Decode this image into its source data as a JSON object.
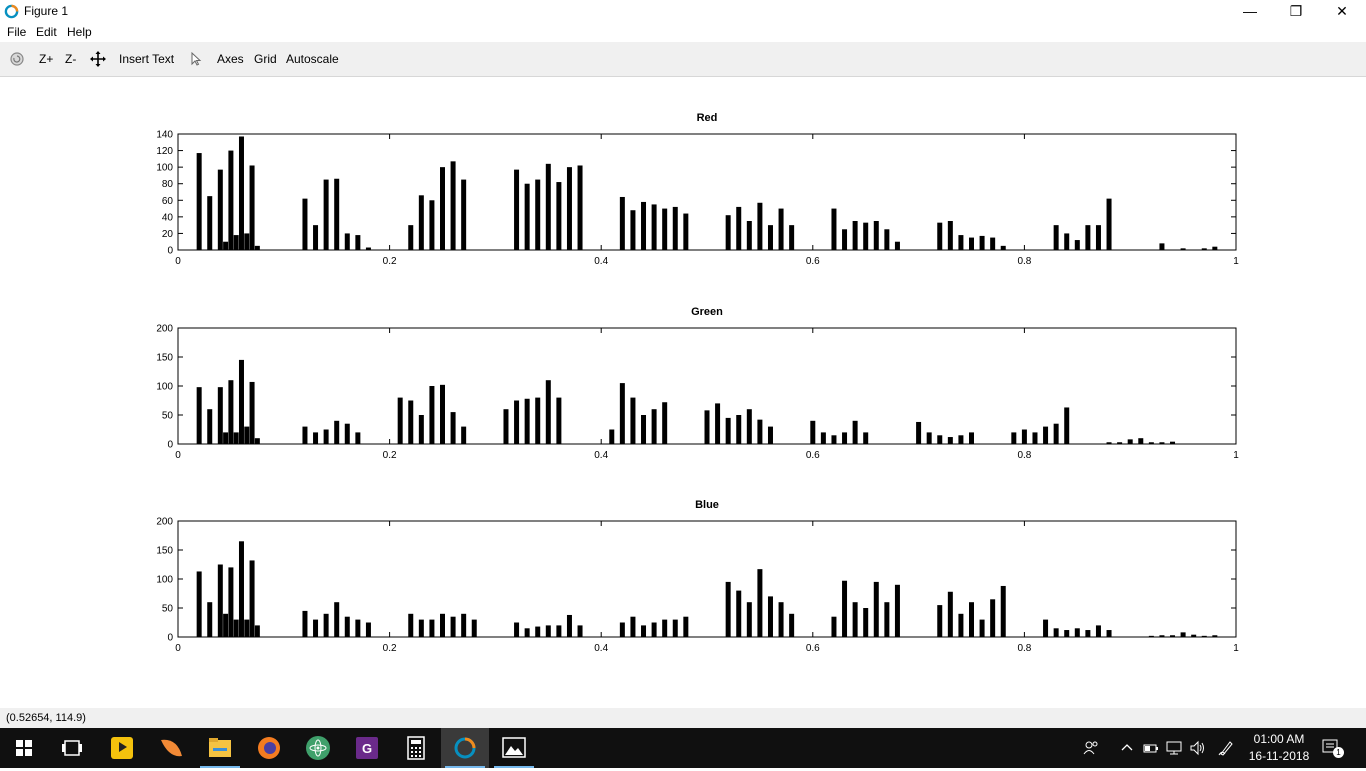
{
  "window": {
    "title": "Figure 1",
    "minimize_glyph": "—",
    "maximize_glyph": "❐",
    "close_glyph": "✕"
  },
  "menu": {
    "items": [
      "File",
      "Edit",
      "Help"
    ]
  },
  "toolbar": {
    "zoom_in_label": "Z+",
    "zoom_out_label": "Z-",
    "insert_text_label": "Insert Text",
    "axes_label": "Axes",
    "grid_label": "Grid",
    "autoscale_label": "Autoscale"
  },
  "status": {
    "coordinates": "(0.52654, 114.9)"
  },
  "taskbar": {
    "time": "01:00 AM",
    "date": "16-11-2018",
    "notification_count": "1",
    "apps": [
      "windows-start",
      "task-view",
      "playit",
      "orange-app",
      "file-explorer",
      "firefox",
      "atom",
      "pdf-app",
      "calculator",
      "octave",
      "photos"
    ]
  },
  "chart_data": [
    {
      "type": "bar",
      "title": "Red",
      "xlim": [
        0,
        1
      ],
      "ylim": [
        0,
        140
      ],
      "xticks": [
        "0",
        "0.2",
        "0.4",
        "0.6",
        "0.8",
        "1"
      ],
      "yticks": [
        "0",
        "20",
        "40",
        "60",
        "80",
        "100",
        "120",
        "140"
      ],
      "color": "#000000",
      "x": [
        0.02,
        0.03,
        0.04,
        0.045,
        0.05,
        0.055,
        0.06,
        0.065,
        0.07,
        0.075,
        0.12,
        0.13,
        0.14,
        0.15,
        0.16,
        0.17,
        0.18,
        0.22,
        0.23,
        0.24,
        0.25,
        0.26,
        0.27,
        0.28,
        0.32,
        0.33,
        0.34,
        0.35,
        0.36,
        0.37,
        0.38,
        0.42,
        0.43,
        0.44,
        0.45,
        0.46,
        0.47,
        0.48,
        0.52,
        0.53,
        0.54,
        0.55,
        0.56,
        0.57,
        0.58,
        0.62,
        0.63,
        0.64,
        0.65,
        0.66,
        0.67,
        0.68,
        0.72,
        0.73,
        0.74,
        0.75,
        0.76,
        0.77,
        0.78,
        0.83,
        0.84,
        0.85,
        0.86,
        0.87,
        0.88,
        0.93,
        0.95,
        0.97,
        0.98
      ],
      "values": [
        117,
        65,
        97,
        10,
        120,
        18,
        137,
        20,
        102,
        5,
        62,
        30,
        85,
        86,
        20,
        18,
        3,
        30,
        66,
        60,
        100,
        107,
        85,
        0,
        97,
        80,
        85,
        104,
        82,
        100,
        102,
        64,
        48,
        58,
        55,
        50,
        52,
        44,
        42,
        52,
        35,
        57,
        30,
        50,
        30,
        50,
        25,
        35,
        33,
        35,
        25,
        10,
        33,
        35,
        18,
        15,
        17,
        15,
        5,
        30,
        20,
        12,
        30,
        30,
        62,
        8,
        2,
        2,
        4
      ]
    },
    {
      "type": "bar",
      "title": "Green",
      "xlim": [
        0,
        1
      ],
      "ylim": [
        0,
        200
      ],
      "xticks": [
        "0",
        "0.2",
        "0.4",
        "0.6",
        "0.8",
        "1"
      ],
      "yticks": [
        "0",
        "50",
        "100",
        "150",
        "200"
      ],
      "color": "#000000",
      "x": [
        0.02,
        0.03,
        0.04,
        0.045,
        0.05,
        0.055,
        0.06,
        0.065,
        0.07,
        0.075,
        0.12,
        0.13,
        0.14,
        0.15,
        0.16,
        0.17,
        0.21,
        0.22,
        0.23,
        0.24,
        0.25,
        0.26,
        0.27,
        0.31,
        0.32,
        0.33,
        0.34,
        0.35,
        0.36,
        0.41,
        0.42,
        0.43,
        0.44,
        0.45,
        0.46,
        0.5,
        0.51,
        0.52,
        0.53,
        0.54,
        0.55,
        0.56,
        0.6,
        0.61,
        0.62,
        0.63,
        0.64,
        0.65,
        0.7,
        0.71,
        0.72,
        0.73,
        0.74,
        0.75,
        0.79,
        0.8,
        0.81,
        0.82,
        0.83,
        0.84,
        0.88,
        0.89,
        0.9,
        0.91,
        0.92,
        0.93,
        0.94
      ],
      "values": [
        98,
        60,
        98,
        20,
        110,
        20,
        145,
        30,
        107,
        10,
        30,
        20,
        25,
        40,
        35,
        20,
        80,
        75,
        50,
        100,
        102,
        55,
        30,
        60,
        75,
        78,
        80,
        110,
        80,
        25,
        105,
        80,
        50,
        60,
        72,
        58,
        70,
        45,
        50,
        60,
        42,
        30,
        40,
        20,
        15,
        20,
        40,
        20,
        38,
        20,
        15,
        12,
        15,
        20,
        20,
        25,
        20,
        30,
        35,
        63,
        3,
        3,
        8,
        10,
        3,
        3,
        4
      ]
    },
    {
      "type": "bar",
      "title": "Blue",
      "xlim": [
        0,
        1
      ],
      "ylim": [
        0,
        200
      ],
      "xticks": [
        "0",
        "0.2",
        "0.4",
        "0.6",
        "0.8",
        "1"
      ],
      "yticks": [
        "0",
        "50",
        "100",
        "150",
        "200"
      ],
      "color": "#000000",
      "x": [
        0.02,
        0.03,
        0.04,
        0.045,
        0.05,
        0.055,
        0.06,
        0.065,
        0.07,
        0.075,
        0.12,
        0.13,
        0.14,
        0.15,
        0.16,
        0.17,
        0.18,
        0.22,
        0.23,
        0.24,
        0.25,
        0.26,
        0.27,
        0.28,
        0.32,
        0.33,
        0.34,
        0.35,
        0.36,
        0.37,
        0.38,
        0.42,
        0.43,
        0.44,
        0.45,
        0.46,
        0.47,
        0.48,
        0.52,
        0.53,
        0.54,
        0.55,
        0.56,
        0.57,
        0.58,
        0.62,
        0.63,
        0.64,
        0.65,
        0.66,
        0.67,
        0.68,
        0.72,
        0.73,
        0.74,
        0.75,
        0.76,
        0.77,
        0.78,
        0.82,
        0.83,
        0.84,
        0.85,
        0.86,
        0.87,
        0.88,
        0.92,
        0.93,
        0.94,
        0.95,
        0.96,
        0.97,
        0.98
      ],
      "values": [
        113,
        60,
        125,
        40,
        120,
        30,
        165,
        30,
        132,
        20,
        45,
        30,
        40,
        60,
        35,
        30,
        25,
        40,
        30,
        30,
        40,
        35,
        40,
        30,
        25,
        15,
        18,
        20,
        20,
        38,
        20,
        25,
        35,
        20,
        25,
        30,
        30,
        35,
        95,
        80,
        60,
        117,
        70,
        60,
        40,
        35,
        97,
        60,
        50,
        95,
        60,
        90,
        55,
        78,
        40,
        60,
        30,
        65,
        88,
        30,
        15,
        12,
        15,
        12,
        20,
        12,
        2,
        3,
        3,
        8,
        4,
        2,
        3
      ]
    }
  ]
}
